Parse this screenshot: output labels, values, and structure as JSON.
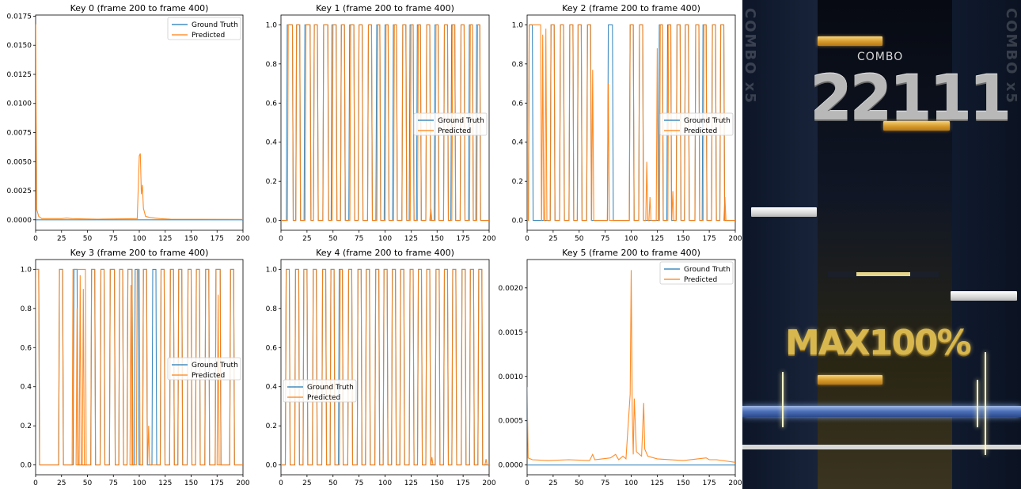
{
  "chart_data": [
    {
      "type": "line",
      "title": "Key 0 (frame 200 to frame 400)",
      "xlim": [
        0,
        200
      ],
      "xticks": [
        0,
        25,
        50,
        75,
        100,
        125,
        150,
        175,
        200
      ],
      "ylim": [
        -0.0009,
        0.0176
      ],
      "yticks": [
        "0.0000",
        "0.0025",
        "0.0050",
        "0.0075",
        "0.0100",
        "0.0125",
        "0.0150",
        "0.0175"
      ],
      "legend_loc": "upper-right",
      "series": [
        {
          "name": "Ground Truth",
          "points": [
            [
              0,
              0
            ],
            [
              200,
              0
            ]
          ]
        },
        {
          "name": "Predicted",
          "points": [
            [
              0,
              0.0168
            ],
            [
              1,
              0.0009
            ],
            [
              2,
              0.0006
            ],
            [
              3,
              0.0003
            ],
            [
              6,
              0.0001
            ],
            [
              25,
              0.0001
            ],
            [
              30,
              0.00015
            ],
            [
              35,
              0.0001
            ],
            [
              60,
              5e-05
            ],
            [
              98,
              0.0001
            ],
            [
              100,
              0.0055
            ],
            [
              101,
              0.0057
            ],
            [
              102,
              0.0022
            ],
            [
              103,
              0.003
            ],
            [
              104,
              0.001
            ],
            [
              106,
              0.0003
            ],
            [
              110,
              0.0002
            ],
            [
              120,
              0.0001
            ],
            [
              130,
              5e-05
            ],
            [
              200,
              3e-05
            ]
          ]
        }
      ]
    },
    {
      "type": "line",
      "title": "Key 1 (frame 200 to frame 400)",
      "xlim": [
        0,
        200
      ],
      "xticks": [
        0,
        25,
        50,
        75,
        100,
        125,
        150,
        175,
        200
      ],
      "ylim": [
        -0.05,
        1.05
      ],
      "yticks": [
        "0.0",
        "0.2",
        "0.4",
        "0.6",
        "0.8",
        "1.0"
      ],
      "legend_loc": "center-right",
      "series": [
        {
          "name": "Ground Truth",
          "pulses": [
            [
              6,
              11
            ],
            [
              15,
              18
            ],
            [
              23,
              28
            ],
            [
              32,
              35
            ],
            [
              41,
              45
            ],
            [
              49,
              53
            ],
            [
              58,
              61
            ],
            [
              66,
              70
            ],
            [
              75,
              78
            ],
            [
              84,
              87
            ],
            [
              92,
              95
            ],
            [
              100,
              103
            ],
            [
              108,
              111
            ],
            [
              117,
              120
            ],
            [
              124,
              127
            ],
            [
              131,
              134
            ],
            [
              140,
              143
            ],
            [
              148,
              151
            ],
            [
              157,
              160
            ],
            [
              164,
              167
            ],
            [
              173,
              176
            ],
            [
              181,
              184
            ],
            [
              188,
              191
            ]
          ]
        },
        {
          "name": "Predicted",
          "pulses": [
            [
              7,
              11
            ],
            [
              15,
              18
            ],
            [
              24,
              28
            ],
            [
              32,
              35
            ],
            [
              41,
              45
            ],
            [
              50,
              53
            ],
            [
              58,
              61
            ],
            [
              67,
              70
            ],
            [
              75,
              78
            ],
            [
              84,
              87
            ],
            [
              93,
              95
            ],
            [
              101,
              103
            ],
            [
              109,
              111
            ],
            [
              117,
              120
            ],
            [
              125,
              127
            ],
            [
              132,
              134
            ],
            [
              140,
              143
            ],
            [
              149,
              151
            ],
            [
              157,
              160
            ],
            [
              165,
              167
            ],
            [
              173,
              176
            ],
            [
              182,
              184
            ],
            [
              189,
              191
            ]
          ],
          "bumps": [
            [
              144,
              0.06
            ]
          ]
        }
      ]
    },
    {
      "type": "line",
      "title": "Key 2 (frame 200 to frame 400)",
      "xlim": [
        0,
        200
      ],
      "xticks": [
        0,
        25,
        50,
        75,
        100,
        125,
        150,
        175,
        200
      ],
      "ylim": [
        -0.05,
        1.05
      ],
      "yticks": [
        "0.0",
        "0.2",
        "0.4",
        "0.6",
        "0.8",
        "1.0"
      ],
      "legend_loc": "center-right",
      "series": [
        {
          "name": "Ground Truth",
          "pulses": [
            [
              2,
              5
            ],
            [
              23,
              26
            ],
            [
              32,
              35
            ],
            [
              41,
              44
            ],
            [
              49,
              52
            ],
            [
              58,
              61
            ],
            [
              78,
              82
            ],
            [
              99,
              102
            ],
            [
              108,
              111
            ],
            [
              127,
              130
            ],
            [
              135,
              138
            ],
            [
              144,
              147
            ],
            [
              152,
              155
            ],
            [
              162,
              165
            ],
            [
              169,
              172
            ],
            [
              178,
              181
            ],
            [
              186,
              189
            ]
          ]
        },
        {
          "name": "Predicted",
          "pulses": [
            [
              2,
              13
            ],
            [
              23,
              26
            ],
            [
              32,
              35
            ],
            [
              41,
              44
            ],
            [
              49,
              52
            ],
            [
              58,
              61
            ],
            [
              99,
              102
            ],
            [
              108,
              111
            ],
            [
              128,
              130
            ],
            [
              136,
              138
            ],
            [
              144,
              147
            ],
            [
              152,
              155
            ],
            [
              162,
              165
            ],
            [
              170,
              172
            ],
            [
              178,
              181
            ],
            [
              186,
              189
            ]
          ],
          "bumps": [
            [
              15,
              0.95
            ],
            [
              18,
              0.98
            ],
            [
              63,
              0.77
            ],
            [
              78,
              0.7
            ],
            [
              125,
              0.88
            ],
            [
              115,
              0.3
            ],
            [
              118,
              0.12
            ],
            [
              140,
              0.15
            ],
            [
              190,
              0.12
            ]
          ]
        }
      ]
    },
    {
      "type": "line",
      "title": "Key 3 (frame 200 to frame 400)",
      "xlim": [
        0,
        200
      ],
      "xticks": [
        0,
        25,
        50,
        75,
        100,
        125,
        150,
        175,
        200
      ],
      "ylim": [
        -0.05,
        1.05
      ],
      "yticks": [
        "0.0",
        "0.2",
        "0.4",
        "0.6",
        "0.8",
        "1.0"
      ],
      "legend_loc": "center-right",
      "series": [
        {
          "name": "Ground Truth",
          "pulses": [
            [
              0,
              3
            ],
            [
              23,
              26
            ],
            [
              37,
              40
            ],
            [
              54,
              57
            ],
            [
              63,
              66
            ],
            [
              72,
              76
            ],
            [
              81,
              84
            ],
            [
              89,
              93
            ],
            [
              96,
              99
            ],
            [
              104,
              107
            ],
            [
              113,
              116
            ],
            [
              121,
              124
            ],
            [
              130,
              133
            ],
            [
              138,
              141
            ],
            [
              147,
              150
            ],
            [
              155,
              158
            ],
            [
              164,
              167
            ],
            [
              174,
              178
            ],
            [
              188,
              191
            ]
          ]
        },
        {
          "name": "Predicted",
          "pulses": [
            [
              0,
              3
            ],
            [
              23,
              26
            ],
            [
              36,
              48
            ],
            [
              54,
              57
            ],
            [
              63,
              66
            ],
            [
              72,
              76
            ],
            [
              81,
              84
            ],
            [
              89,
              93
            ],
            [
              98,
              100
            ],
            [
              104,
              107
            ],
            [
              121,
              124
            ],
            [
              130,
              133
            ],
            [
              138,
              141
            ],
            [
              147,
              150
            ],
            [
              155,
              158
            ],
            [
              164,
              167
            ],
            [
              174,
              178
            ],
            [
              188,
              191
            ]
          ],
          "bumps": [
            [
              40,
              0.8
            ],
            [
              43,
              0.97
            ],
            [
              46,
              0.9
            ],
            [
              92,
              0.92
            ],
            [
              109,
              0.2
            ],
            [
              176,
              0.87
            ]
          ]
        }
      ]
    },
    {
      "type": "line",
      "title": "Key 4 (frame 200 to frame 400)",
      "xlim": [
        0,
        200
      ],
      "xticks": [
        0,
        25,
        50,
        75,
        100,
        125,
        150,
        175,
        200
      ],
      "ylim": [
        -0.05,
        1.05
      ],
      "yticks": [
        "0.0",
        "0.2",
        "0.4",
        "0.6",
        "0.8",
        "1.0"
      ],
      "legend_loc": "center-left",
      "series": [
        {
          "name": "Ground Truth",
          "pulses": [
            [
              5,
              8
            ],
            [
              14,
              17
            ],
            [
              22,
              25
            ],
            [
              31,
              34
            ],
            [
              40,
              43
            ],
            [
              48,
              51
            ],
            [
              56,
              59
            ],
            [
              65,
              68
            ],
            [
              74,
              77
            ],
            [
              82,
              85
            ],
            [
              91,
              94
            ],
            [
              99,
              102
            ],
            [
              107,
              110
            ],
            [
              115,
              118
            ],
            [
              124,
              127
            ],
            [
              132,
              135
            ],
            [
              140,
              143
            ],
            [
              149,
              152
            ],
            [
              157,
              160
            ],
            [
              165,
              168
            ],
            [
              174,
              177
            ],
            [
              182,
              185
            ],
            [
              190,
              193
            ]
          ]
        },
        {
          "name": "Predicted",
          "pulses": [
            [
              5,
              8
            ],
            [
              14,
              17
            ],
            [
              22,
              25
            ],
            [
              31,
              34
            ],
            [
              40,
              43
            ],
            [
              48,
              51
            ],
            [
              57,
              59
            ],
            [
              65,
              68
            ],
            [
              74,
              77
            ],
            [
              82,
              85
            ],
            [
              91,
              94
            ],
            [
              99,
              102
            ],
            [
              107,
              110
            ],
            [
              115,
              118
            ],
            [
              124,
              127
            ],
            [
              132,
              135
            ],
            [
              140,
              143
            ],
            [
              149,
              152
            ],
            [
              157,
              160
            ],
            [
              165,
              168
            ],
            [
              174,
              177
            ],
            [
              182,
              185
            ],
            [
              190,
              193
            ]
          ],
          "bumps": [
            [
              145,
              0.04
            ],
            [
              197,
              0.03
            ]
          ]
        }
      ]
    },
    {
      "type": "line",
      "title": "Key 5 (frame 200 to frame 400)",
      "xlim": [
        0,
        200
      ],
      "xticks": [
        0,
        25,
        50,
        75,
        100,
        125,
        150,
        175,
        200
      ],
      "ylim": [
        -0.00011,
        0.00232
      ],
      "yticks": [
        "0.0000",
        "0.0005",
        "0.0010",
        "0.0015",
        "0.0020"
      ],
      "legend_loc": "upper-right",
      "series": [
        {
          "name": "Ground Truth",
          "points": [
            [
              0,
              0
            ],
            [
              200,
              0
            ]
          ]
        },
        {
          "name": "Predicted",
          "points": [
            [
              0,
              0.00088
            ],
            [
              1,
              8e-05
            ],
            [
              5,
              6e-05
            ],
            [
              20,
              5e-05
            ],
            [
              40,
              6e-05
            ],
            [
              60,
              5e-05
            ],
            [
              63,
              0.00012
            ],
            [
              65,
              6e-05
            ],
            [
              80,
              8e-05
            ],
            [
              85,
              0.00012
            ],
            [
              88,
              6e-05
            ],
            [
              92,
              0.0001
            ],
            [
              95,
              7e-05
            ],
            [
              99,
              0.0008
            ],
            [
              100,
              0.0022
            ],
            [
              101,
              0.0006
            ],
            [
              102,
              0.00012
            ],
            [
              103,
              0.00075
            ],
            [
              105,
              0.00015
            ],
            [
              110,
              0.0001
            ],
            [
              112,
              0.0007
            ],
            [
              113,
              0.00018
            ],
            [
              116,
              0.0001
            ],
            [
              125,
              7e-05
            ],
            [
              150,
              5e-05
            ],
            [
              172,
              8e-05
            ],
            [
              175,
              6e-05
            ],
            [
              182,
              6e-05
            ],
            [
              200,
              3e-05
            ]
          ]
        }
      ]
    }
  ],
  "colors": {
    "ground_truth": "#1f77b4",
    "predicted": "#ff7f0e",
    "axes": "#000000",
    "background": "#ffffff"
  },
  "game_screenshot": {
    "combo_label": "COMBO",
    "combo_count": "22111",
    "max_text": "MAX100%",
    "side_text": "COMBO x5"
  }
}
